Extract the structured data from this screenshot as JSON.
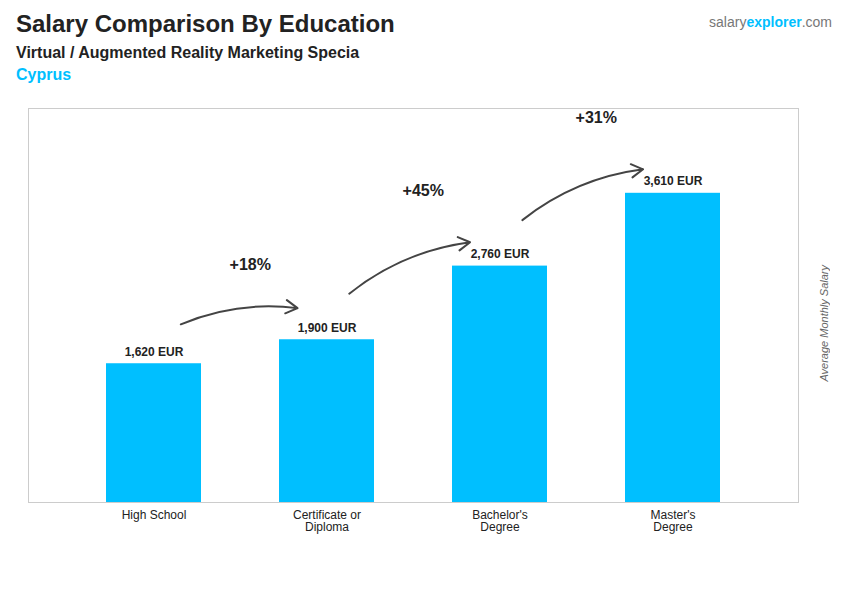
{
  "chart_data": {
    "type": "bar",
    "title": "Salary Comparison By Education",
    "subtitle": "Virtual / Augmented Reality Marketing Specia",
    "country": "Cyprus",
    "watermark": [
      "salary",
      "explorer",
      ".com"
    ],
    "ylabel": "Average Monthly Salary",
    "categories": [
      "High School",
      "Certificate or\nDiploma",
      "Bachelor's\nDegree",
      "Master's\nDegree"
    ],
    "values": [
      1620,
      1900,
      2760,
      3610
    ],
    "value_labels": [
      "1,620 EUR",
      "1,900 EUR",
      "2,760 EUR",
      "3,610 EUR"
    ],
    "annotations": [
      "+18%",
      "+45%",
      "+31%"
    ],
    "color": "#00BFFF",
    "ylim": [
      0,
      4600
    ],
    "tick_labels": "x",
    "data_labels": true,
    "grid": false
  }
}
